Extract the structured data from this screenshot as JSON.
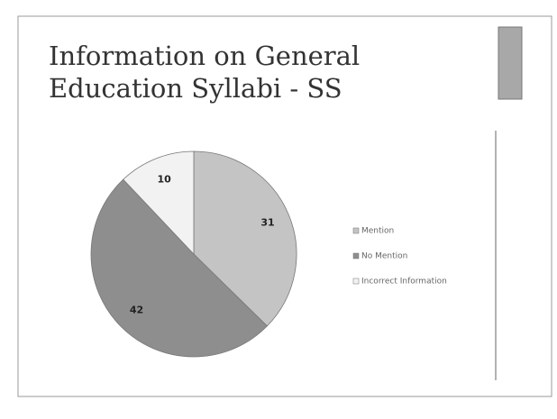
{
  "chart_data": {
    "type": "pie",
    "title": "Information on General Education Syllabi - SS",
    "categories": [
      "Mention",
      "No Mention",
      "Incorrect Information"
    ],
    "values": [
      31,
      42,
      10
    ],
    "colors": [
      "#c4c4c4",
      "#8e8e8e",
      "#f2f2f2"
    ],
    "legend": "right"
  }
}
